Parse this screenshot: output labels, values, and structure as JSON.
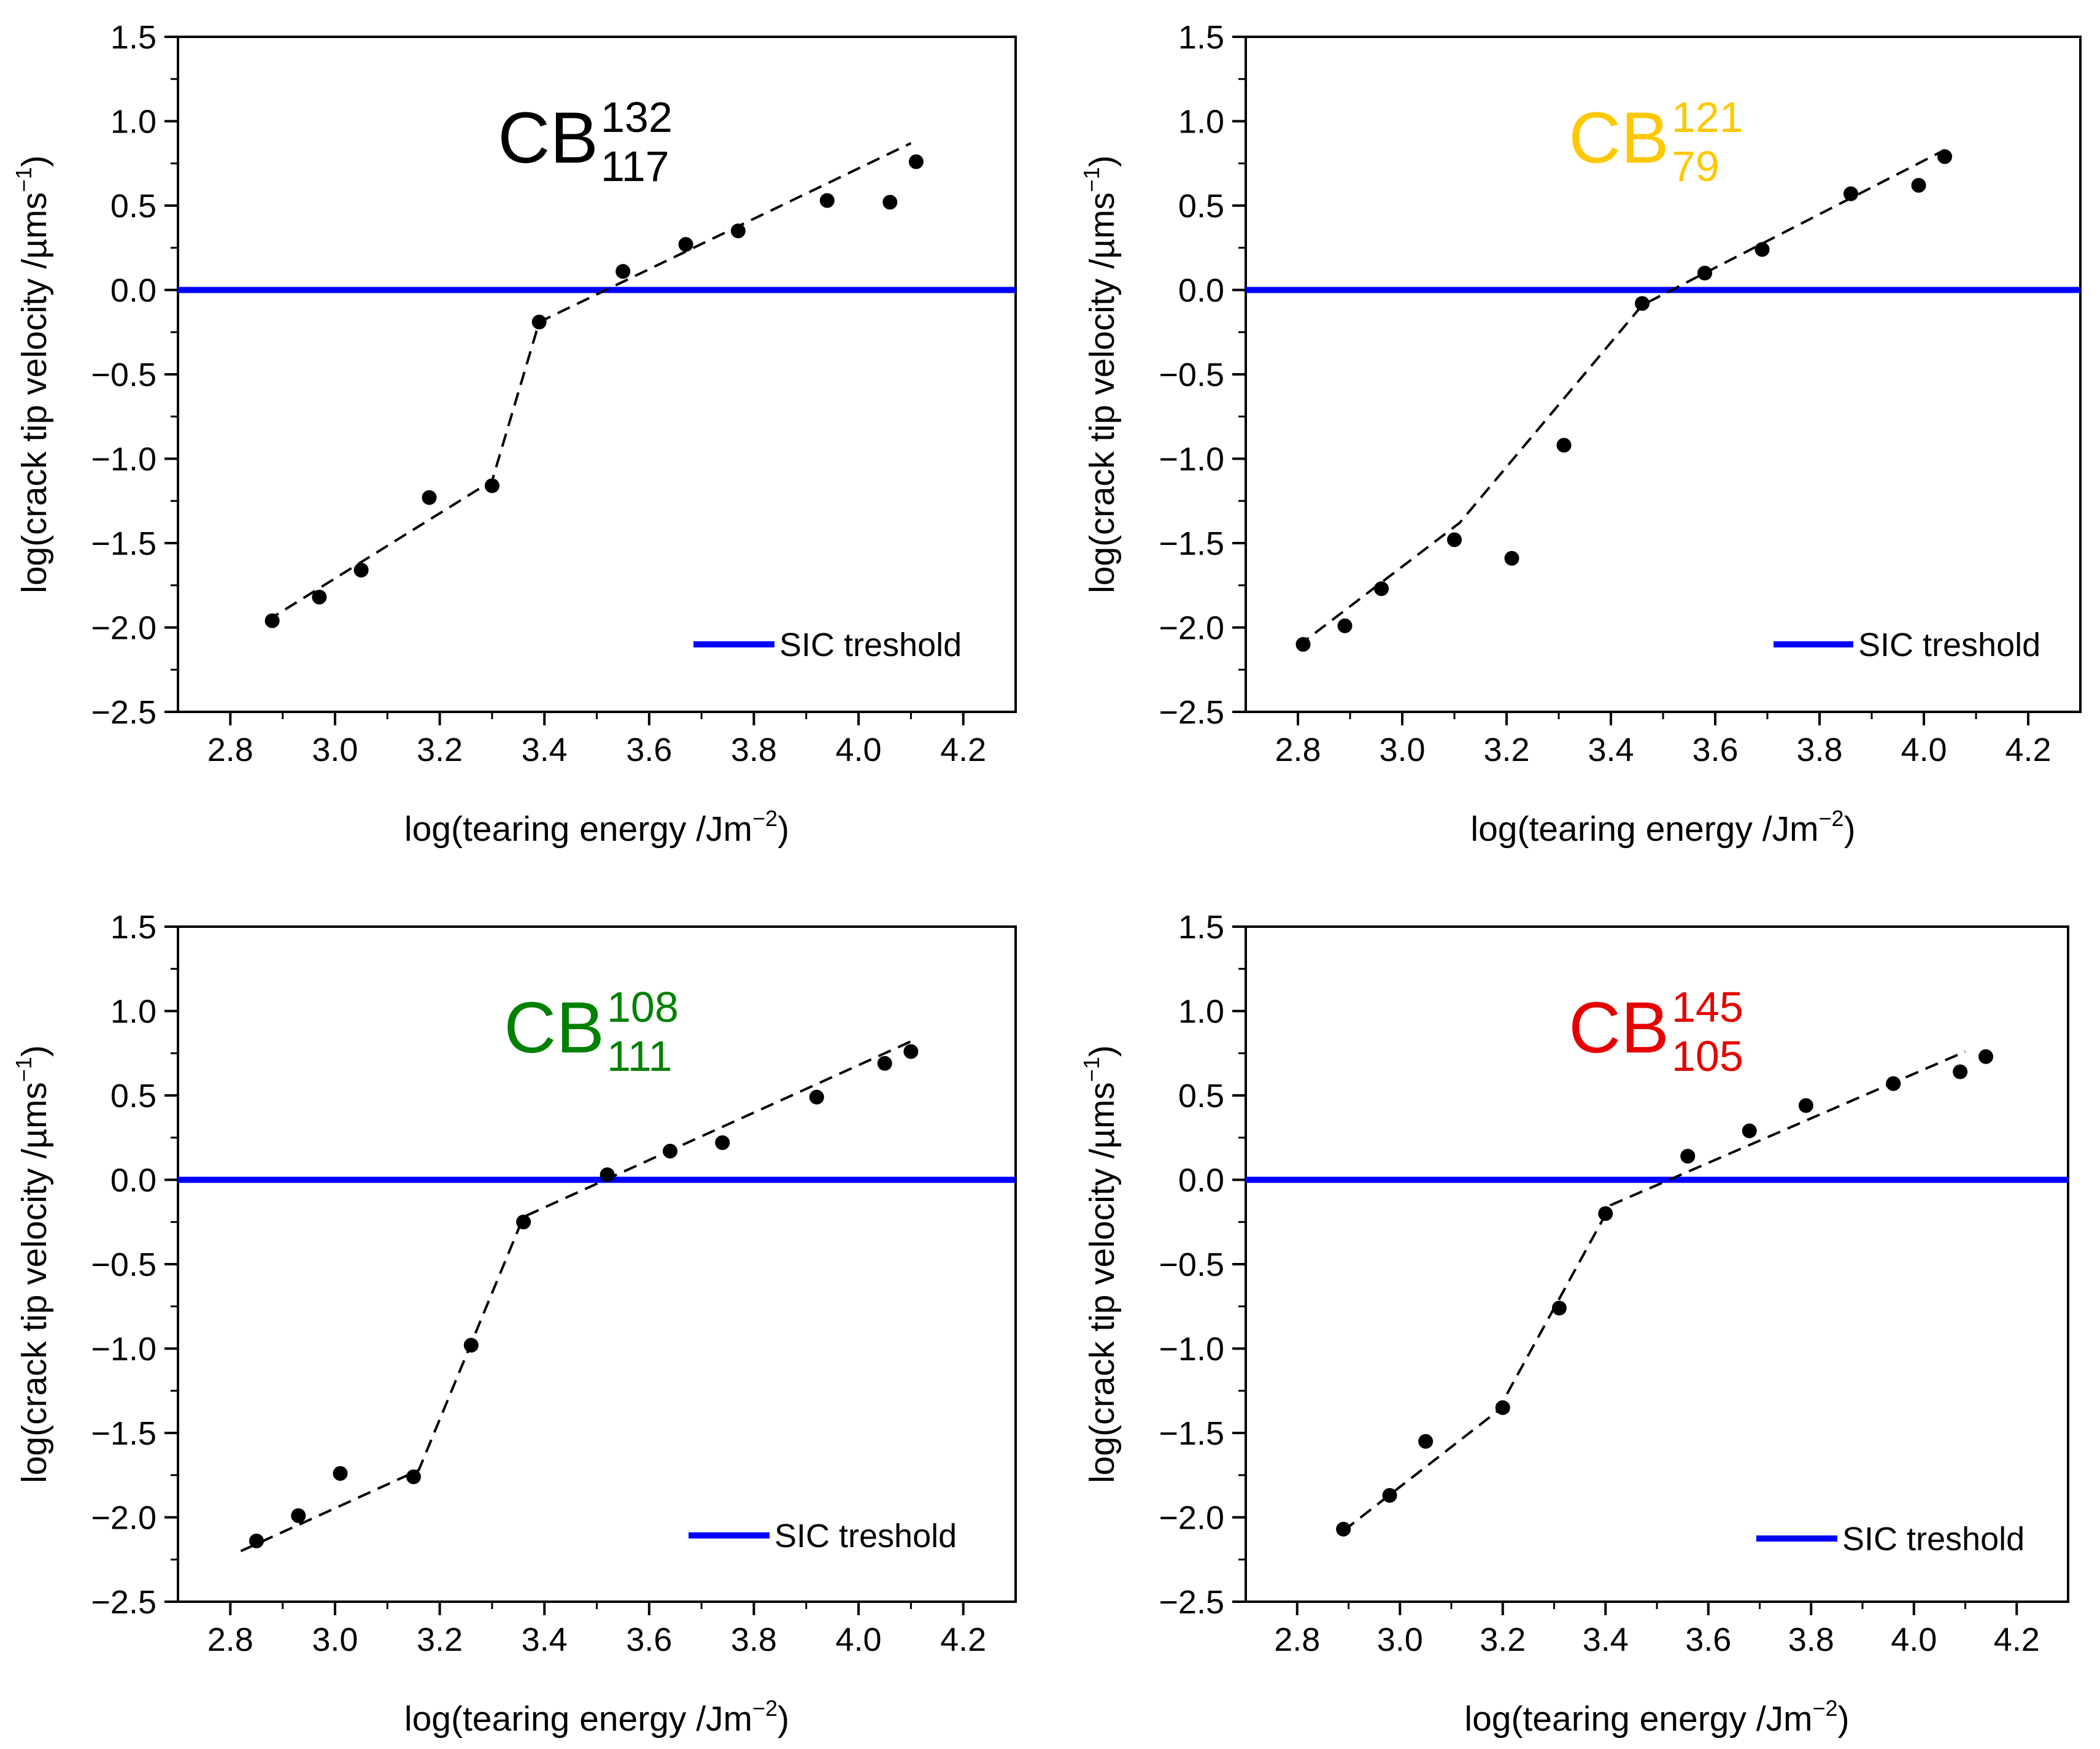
{
  "chart_data": [
    {
      "type": "scatter",
      "title": {
        "base": "CB",
        "sup": "132",
        "sub": "117",
        "color": "#000000"
      },
      "xlabel": {
        "text": "log(tearing energy /Jm",
        "sup": "−2",
        "close": ")"
      },
      "ylabel": {
        "text": "log(crack tip velocity /µms",
        "sup": "−1",
        "close": ")"
      },
      "xlim": [
        2.7,
        4.3
      ],
      "ylim": [
        -2.5,
        1.5
      ],
      "xticks": [
        "2.8",
        "3.0",
        "3.2",
        "3.4",
        "3.6",
        "3.8",
        "4.0",
        "4.2"
      ],
      "yticks": [
        "−2.5",
        "−2.0",
        "−1.5",
        "−1.0",
        "−0.5",
        "0.0",
        "0.5",
        "1.0",
        "1.5"
      ],
      "series": [
        {
          "name": "data",
          "x": [
            2.88,
            2.97,
            3.05,
            3.18,
            3.3,
            3.39,
            3.55,
            3.67,
            3.77,
            3.94,
            4.06,
            4.11
          ],
          "y": [
            -1.96,
            -1.82,
            -1.66,
            -1.23,
            -1.16,
            -0.19,
            0.11,
            0.27,
            0.35,
            0.53,
            0.52,
            0.76
          ]
        },
        {
          "name": "fit",
          "x": [
            2.87,
            3.3,
            3.39,
            4.1
          ],
          "y": [
            -1.96,
            -1.13,
            -0.19,
            0.87
          ]
        }
      ],
      "threshold": {
        "label": "SIC treshold",
        "y": 0.0,
        "color": "#0000FF"
      },
      "legend": "bottom-right"
    },
    {
      "type": "scatter",
      "title": {
        "base": "CB",
        "sup": "121",
        "sub": "79",
        "color": "#FFC800"
      },
      "xlabel": {
        "text": "log(tearing energy /Jm",
        "sup": "−2",
        "close": ")"
      },
      "ylabel": {
        "text": "log(crack tip velocity /µms",
        "sup": "−1",
        "close": ")"
      },
      "xlim": [
        2.7,
        4.3
      ],
      "ylim": [
        -2.5,
        1.5
      ],
      "xticks": [
        "2.8",
        "3.0",
        "3.2",
        "3.4",
        "3.6",
        "3.8",
        "4.0",
        "4.2"
      ],
      "yticks": [
        "−2.5",
        "−2.0",
        "−1.5",
        "−1.0",
        "−0.5",
        "0.0",
        "0.5",
        "1.0",
        "1.5"
      ],
      "series": [
        {
          "name": "data",
          "x": [
            2.81,
            2.89,
            2.96,
            3.1,
            3.21,
            3.31,
            3.46,
            3.58,
            3.69,
            3.86,
            3.99,
            4.04
          ],
          "y": [
            -2.1,
            -1.99,
            -1.77,
            -1.48,
            -1.59,
            -0.92,
            -0.08,
            0.1,
            0.24,
            0.57,
            0.62,
            0.79
          ]
        },
        {
          "name": "fit",
          "x": [
            2.8,
            3.11,
            3.46,
            4.04
          ],
          "y": [
            -2.11,
            -1.38,
            -0.09,
            0.83
          ]
        }
      ],
      "threshold": {
        "label": "SIC treshold",
        "y": 0.0,
        "color": "#0000FF"
      },
      "legend": "bottom-right"
    },
    {
      "type": "scatter",
      "title": {
        "base": "CB",
        "sup": "108",
        "sub": "111",
        "color": "#008000"
      },
      "xlabel": {
        "text": "log(tearing energy /Jm",
        "sup": "−2",
        "close": ")"
      },
      "ylabel": {
        "text": "log(crack tip velocity /µms",
        "sup": "−1",
        "close": ")"
      },
      "xlim": [
        2.7,
        4.3
      ],
      "ylim": [
        -2.5,
        1.5
      ],
      "xticks": [
        "2.8",
        "3.0",
        "3.2",
        "3.4",
        "3.6",
        "3.8",
        "4.0",
        "4.2"
      ],
      "yticks": [
        "−2.5",
        "−2.0",
        "−1.5",
        "−1.0",
        "−0.5",
        "0.0",
        "0.5",
        "1.0",
        "1.5"
      ],
      "series": [
        {
          "name": "data",
          "x": [
            2.85,
            2.93,
            3.01,
            3.15,
            3.26,
            3.36,
            3.52,
            3.64,
            3.74,
            3.92,
            4.05,
            4.1
          ],
          "y": [
            -2.14,
            -1.99,
            -1.74,
            -1.76,
            -0.98,
            -0.25,
            0.03,
            0.17,
            0.22,
            0.49,
            0.69,
            0.76
          ]
        },
        {
          "name": "fit",
          "x": [
            2.82,
            3.16,
            3.36,
            4.1
          ],
          "y": [
            -2.2,
            -1.72,
            -0.22,
            0.82
          ]
        }
      ],
      "threshold": {
        "label": "SIC treshold",
        "y": 0.0,
        "color": "#0000FF"
      },
      "legend": "bottom-right"
    },
    {
      "type": "scatter",
      "title": {
        "base": "CB",
        "sup": "145",
        "sub": "105",
        "color": "#E60000"
      },
      "xlabel": {
        "text": "log(tearing energy /Jm",
        "sup": "−2",
        "close": ")"
      },
      "ylabel": {
        "text": "log(crack tip velocity /µms",
        "sup": "−1",
        "close": ")"
      },
      "xlim": [
        2.7,
        4.3
      ],
      "ylim": [
        -2.5,
        1.5
      ],
      "xticks": [
        "2.8",
        "3.0",
        "3.2",
        "3.4",
        "3.6",
        "3.8",
        "4.0",
        "4.2"
      ],
      "yticks": [
        "−2.5",
        "−2.0",
        "−1.5",
        "−1.0",
        "−0.5",
        "0.0",
        "0.5",
        "1.0",
        "1.5"
      ],
      "series": [
        {
          "name": "data",
          "x": [
            2.89,
            2.98,
            3.05,
            3.2,
            3.31,
            3.4,
            3.56,
            3.68,
            3.79,
            3.96,
            4.09,
            4.14
          ],
          "y": [
            -2.07,
            -1.87,
            -1.55,
            -1.35,
            -0.76,
            -0.2,
            0.14,
            0.29,
            0.44,
            0.57,
            0.64,
            0.73
          ]
        },
        {
          "name": "fit",
          "x": [
            2.89,
            3.19,
            3.41,
            4.1
          ],
          "y": [
            -2.08,
            -1.37,
            -0.15,
            0.76
          ]
        }
      ],
      "threshold": {
        "label": "SIC treshold",
        "y": 0.0,
        "color": "#0000FF"
      },
      "legend": "bottom-right"
    }
  ]
}
